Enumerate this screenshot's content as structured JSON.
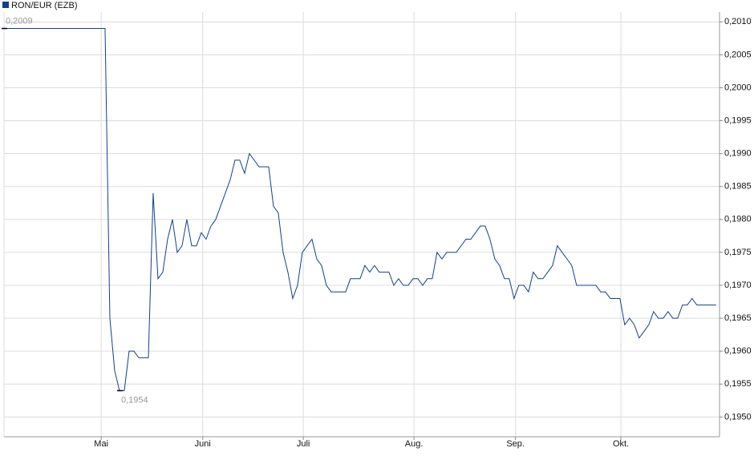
{
  "chart_data": {
    "type": "line",
    "series": [
      {
        "name": "RON/EUR (EZB)",
        "color": "#123f8c",
        "values": [
          0.2009,
          0.2009,
          0.2009,
          0.2009,
          0.2009,
          0.2009,
          0.2009,
          0.2009,
          0.2009,
          0.2009,
          0.2009,
          0.2009,
          0.2009,
          0.2009,
          0.2009,
          0.2009,
          0.2009,
          0.2009,
          0.2009,
          0.2009,
          0.2009,
          0.2009,
          0.1965,
          0.1957,
          0.1954,
          0.1954,
          0.196,
          0.196,
          0.1959,
          0.1959,
          0.1959,
          0.1984,
          0.1971,
          0.1972,
          0.1977,
          0.198,
          0.1975,
          0.1976,
          0.198,
          0.1976,
          0.1976,
          0.1978,
          0.1977,
          0.1979,
          0.198,
          0.1982,
          0.1984,
          0.1986,
          0.1989,
          0.1989,
          0.1987,
          0.199,
          0.1989,
          0.1988,
          0.1988,
          0.1988,
          0.1982,
          0.1981,
          0.1975,
          0.1972,
          0.1968,
          0.197,
          0.1975,
          0.1976,
          0.1977,
          0.1974,
          0.1973,
          0.197,
          0.1969,
          0.1969,
          0.1969,
          0.1969,
          0.1971,
          0.1971,
          0.1971,
          0.1973,
          0.1972,
          0.1973,
          0.1972,
          0.1972,
          0.1972,
          0.197,
          0.1971,
          0.197,
          0.197,
          0.1971,
          0.1971,
          0.197,
          0.1971,
          0.1971,
          0.1975,
          0.1974,
          0.1975,
          0.1975,
          0.1975,
          0.1976,
          0.1977,
          0.1977,
          0.1978,
          0.1979,
          0.1979,
          0.1977,
          0.1974,
          0.1973,
          0.1971,
          0.1971,
          0.1968,
          0.197,
          0.197,
          0.1969,
          0.1972,
          0.1971,
          0.1971,
          0.1972,
          0.1973,
          0.1976,
          0.1975,
          0.1974,
          0.1973,
          0.197,
          0.197,
          0.197,
          0.197,
          0.197,
          0.1969,
          0.1969,
          0.1968,
          0.1968,
          0.1968,
          0.1964,
          0.1965,
          0.1964,
          0.1962,
          0.1963,
          0.1964,
          0.1966,
          0.1965,
          0.1965,
          0.1966,
          0.1965,
          0.1965,
          0.1967,
          0.1967,
          0.1968,
          0.1967,
          0.1967,
          0.1967,
          0.1967,
          0.1967
        ]
      }
    ],
    "xlim": [
      0,
      148.7
    ],
    "xticks": [
      {
        "value": 20.2,
        "label": "Mai"
      },
      {
        "value": 41.3,
        "label": "Juni"
      },
      {
        "value": 62.2,
        "label": "Juli"
      },
      {
        "value": 85.2,
        "label": "Aug."
      },
      {
        "value": 106.3,
        "label": "Sep."
      },
      {
        "value": 128.2,
        "label": "Okt."
      }
    ],
    "ylim": [
      0.1947,
      0.20115
    ],
    "yticks": [
      {
        "value": 0.195,
        "label": "0,1950"
      },
      {
        "value": 0.1955,
        "label": "0,1955"
      },
      {
        "value": 0.196,
        "label": "0,1960"
      },
      {
        "value": 0.1965,
        "label": "0,1965"
      },
      {
        "value": 0.197,
        "label": "0,1970"
      },
      {
        "value": 0.1975,
        "label": "0,1975"
      },
      {
        "value": 0.198,
        "label": "0,1980"
      },
      {
        "value": 0.1985,
        "label": "0,1985"
      },
      {
        "value": 0.199,
        "label": "0,1990"
      },
      {
        "value": 0.1995,
        "label": "0,1995"
      },
      {
        "value": 0.2,
        "label": "0,2000"
      },
      {
        "value": 0.2005,
        "label": "0,2005"
      },
      {
        "value": 0.201,
        "label": "0,2010"
      }
    ],
    "grid": true,
    "annotations": [
      {
        "label": "0,2009",
        "x": 0,
        "y": 0.2009
      },
      {
        "label": "0,1954",
        "x": 24,
        "y": 0.1954
      }
    ]
  }
}
